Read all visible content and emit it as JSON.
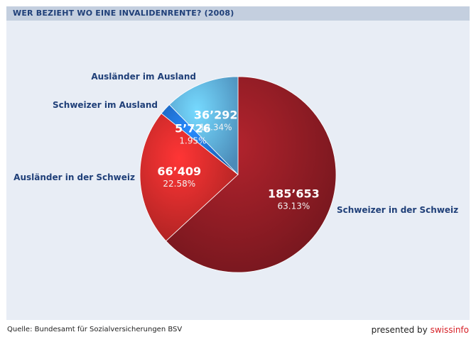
{
  "header": {
    "title": "WER BEZIEHT WO EINE INVALIDENRENTE? (2008)"
  },
  "footer": {
    "source": "Quelle: Bundesamt für Sozialversicherungen BSV",
    "presented_by": "presented by",
    "brand": "swissinfo"
  },
  "chart_data": {
    "type": "pie",
    "title": "WER BEZIEHT WO EINE INVALIDENRENTE? (2008)",
    "slices": [
      {
        "label": "Schweizer in der Schweiz",
        "value": 185653,
        "value_label": "185’653",
        "percent": 63.13,
        "percent_label": "63.13%",
        "color": "#8e1c24"
      },
      {
        "label": "Ausländer in der Schweiz",
        "value": 66409,
        "value_label": "66’409",
        "percent": 22.58,
        "percent_label": "22.58%",
        "color": "#d12a2a"
      },
      {
        "label": "Schweizer im Ausland",
        "value": 5726,
        "value_label": "5’726",
        "percent": 1.95,
        "percent_label": "1.95%",
        "color": "#1f6fd1"
      },
      {
        "label": "Ausländer im Ausland",
        "value": 36292,
        "value_label": "36’292",
        "percent": 12.34,
        "percent_label": "12.34%",
        "color": "#5eaee6"
      }
    ]
  }
}
